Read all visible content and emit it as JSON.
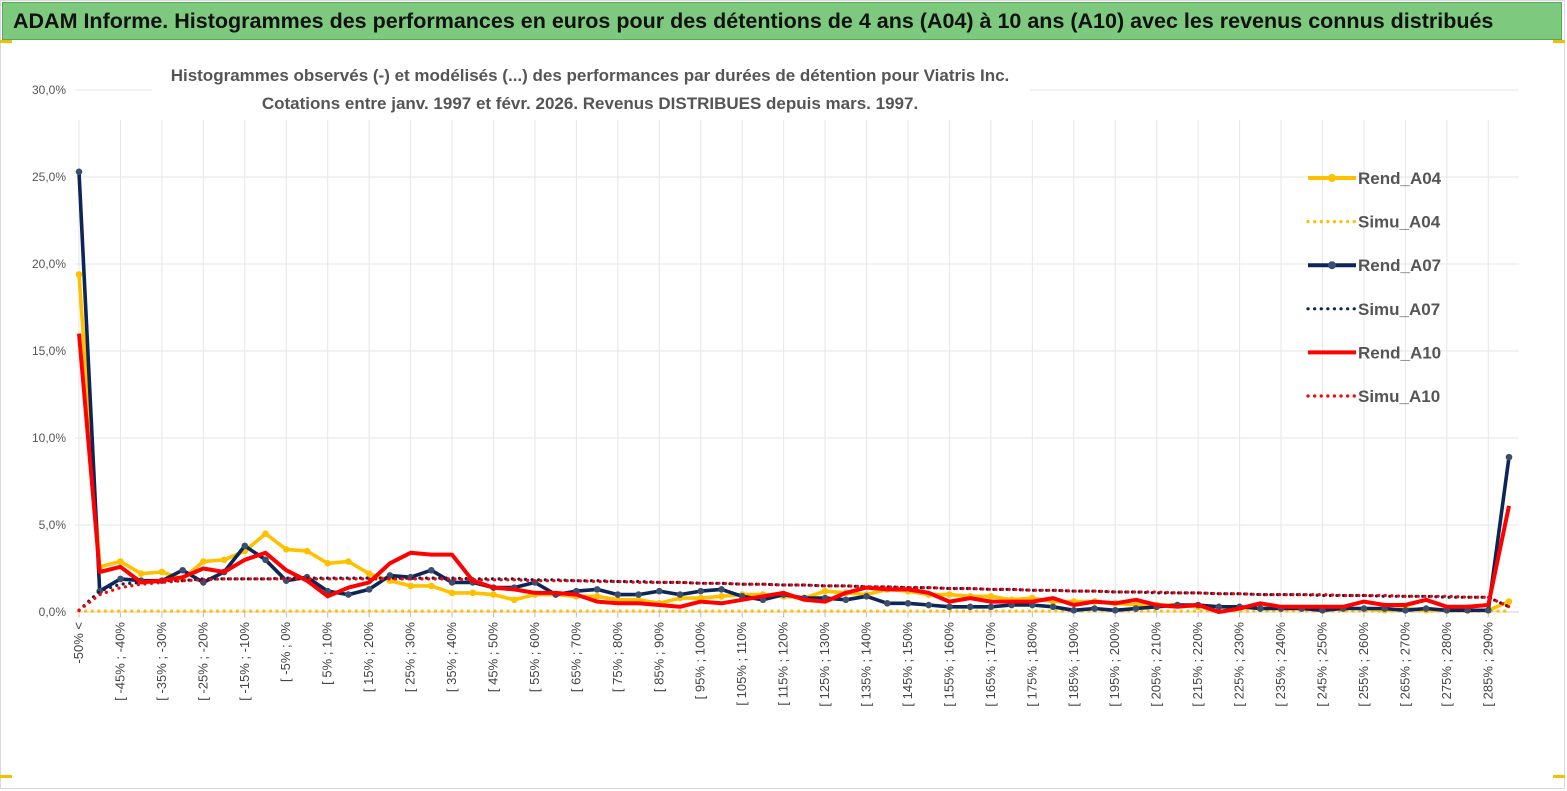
{
  "banner": {
    "title": "ADAM Informe. Histogrammes des performances en euros pour des détentions de 4 ans (A04) à 10 ans (A10) avec les revenus connus distribués"
  },
  "colors": {
    "banner_bg": "#7dc97e",
    "A04": "#ffc000",
    "A07": "#0d2657",
    "A10": "#ff0000",
    "grid": "#e6e6e6"
  },
  "chart_data": {
    "type": "line",
    "title_lines": [
      "Histogrammes observés (-) et modélisés (...) des performances par durées de détention pour Viatris Inc.",
      "Cotations entre janv. 1997 et févr. 2026. Revenus DISTRIBUES depuis mars. 1997."
    ],
    "y_ticks": [
      "0,0%",
      "5,0%",
      "10,0%",
      "15,0%",
      "20,0%",
      "25,0%",
      "30,0%"
    ],
    "ylim": [
      0,
      30
    ],
    "n_points": 70,
    "x_tick_labels": [
      "-50% <",
      "[ -45% ; -40%",
      "[ -35% ; -30%",
      "[ -25% ; -20%",
      "[ -15% ; -10%",
      "[ -5% ; 0%",
      "[ 5% ; 10%",
      "[ 15% ; 20%",
      "[ 25% ; 30%",
      "[ 35% ; 40%",
      "[ 45% ; 50%",
      "[ 55% ; 60%",
      "[ 65% ; 70%",
      "[ 75% ; 80%",
      "[ 85% ; 90%",
      "[ 95% ; 100%",
      "[ 105% ; 110%",
      "[ 115% ; 120%",
      "[ 125% ; 130%",
      "[ 135% ; 140%",
      "[ 145% ; 150%",
      "[ 155% ; 160%",
      "[ 165% ; 170%",
      "[ 175% ; 180%",
      "[ 185% ; 190%",
      "[ 195% ; 200%",
      "[ 205% ; 210%",
      "[ 215% ; 220%",
      "[ 225% ; 230%",
      "[ 235% ; 240%",
      "[ 245% ; 250%",
      "[ 255% ; 260%",
      "[ 265% ; 270%",
      "[ 275% ; 280%",
      "[ 285% ; 290%"
    ],
    "series": [
      {
        "name": "Rend_A04",
        "style": "solid",
        "color": "#ffc000",
        "values": [
          19.4,
          2.6,
          2.9,
          2.2,
          2.3,
          1.9,
          2.9,
          3.0,
          3.5,
          4.5,
          3.6,
          3.5,
          2.8,
          2.9,
          2.2,
          1.8,
          1.5,
          1.5,
          1.1,
          1.1,
          1.0,
          0.7,
          1.0,
          1.0,
          0.9,
          0.9,
          0.7,
          0.7,
          0.5,
          0.8,
          0.8,
          0.9,
          1.0,
          1.0,
          0.9,
          0.8,
          1.2,
          1.1,
          1.0,
          1.3,
          1.2,
          1.0,
          1.0,
          0.9,
          0.9,
          0.7,
          0.8,
          0.6,
          0.6,
          0.6,
          0.5,
          0.4,
          0.4,
          0.4,
          0.3,
          0.3,
          0.3,
          0.2,
          0.2,
          0.2,
          0.2,
          0.2,
          0.2,
          0.1,
          0.2,
          0.1,
          0.1,
          0.1,
          0.1,
          0.6
        ]
      },
      {
        "name": "Simu_A04",
        "style": "dotted",
        "color": "#ffc000",
        "values": [
          0.05,
          0.05,
          0.05,
          0.05,
          0.05,
          0.05,
          0.05,
          0.05,
          0.05,
          0.05,
          0.05,
          0.05,
          0.05,
          0.05,
          0.05,
          0.05,
          0.05,
          0.05,
          0.05,
          0.05,
          0.05,
          0.05,
          0.05,
          0.05,
          0.05,
          0.05,
          0.05,
          0.05,
          0.05,
          0.05,
          0.05,
          0.05,
          0.05,
          0.05,
          0.05,
          0.05,
          0.05,
          0.05,
          0.05,
          0.05,
          0.05,
          0.05,
          0.05,
          0.05,
          0.05,
          0.05,
          0.05,
          0.05,
          0.05,
          0.05,
          0.05,
          0.05,
          0.05,
          0.05,
          0.05,
          0.05,
          0.05,
          0.05,
          0.05,
          0.05,
          0.05,
          0.05,
          0.05,
          0.05,
          0.05,
          0.05,
          0.05,
          0.05,
          0.05,
          0.05
        ]
      },
      {
        "name": "Rend_A07",
        "style": "solid",
        "color": "#0d2657",
        "values": [
          25.3,
          1.2,
          1.9,
          1.8,
          1.8,
          2.4,
          1.7,
          2.3,
          3.8,
          3.0,
          1.8,
          2.0,
          1.2,
          1.0,
          1.3,
          2.1,
          2.0,
          2.4,
          1.7,
          1.7,
          1.4,
          1.4,
          1.7,
          1.0,
          1.2,
          1.3,
          1.0,
          1.0,
          1.2,
          1.0,
          1.2,
          1.3,
          0.9,
          0.7,
          1.0,
          0.8,
          0.8,
          0.7,
          0.9,
          0.5,
          0.5,
          0.4,
          0.3,
          0.3,
          0.3,
          0.4,
          0.4,
          0.3,
          0.1,
          0.2,
          0.1,
          0.2,
          0.3,
          0.4,
          0.4,
          0.3,
          0.3,
          0.2,
          0.2,
          0.2,
          0.1,
          0.2,
          0.2,
          0.2,
          0.1,
          0.2,
          0.1,
          0.1,
          0.1,
          8.9
        ]
      },
      {
        "name": "Simu_A07",
        "style": "dotted",
        "color": "#0d2657",
        "values": [
          0.1,
          1.2,
          1.6,
          1.7,
          1.8,
          1.8,
          1.9,
          1.9,
          1.9,
          1.9,
          1.95,
          1.95,
          1.95,
          1.95,
          1.95,
          1.95,
          1.95,
          1.95,
          1.95,
          1.9,
          1.9,
          1.9,
          1.85,
          1.85,
          1.8,
          1.8,
          1.75,
          1.75,
          1.7,
          1.7,
          1.65,
          1.65,
          1.6,
          1.6,
          1.55,
          1.55,
          1.5,
          1.5,
          1.45,
          1.45,
          1.4,
          1.4,
          1.35,
          1.35,
          1.3,
          1.3,
          1.25,
          1.25,
          1.2,
          1.2,
          1.15,
          1.15,
          1.1,
          1.1,
          1.1,
          1.05,
          1.05,
          1.0,
          1.0,
          1.0,
          0.95,
          0.95,
          0.95,
          0.9,
          0.9,
          0.9,
          0.85,
          0.85,
          0.85,
          0.3
        ]
      },
      {
        "name": "Rend_A10",
        "style": "solid",
        "color": "#ff0000",
        "values": [
          16.0,
          2.3,
          2.6,
          1.7,
          1.8,
          2.0,
          2.5,
          2.3,
          3.0,
          3.4,
          2.4,
          1.8,
          0.9,
          1.4,
          1.7,
          2.8,
          3.4,
          3.3,
          3.3,
          1.8,
          1.4,
          1.3,
          1.1,
          1.1,
          1.0,
          0.6,
          0.5,
          0.5,
          0.4,
          0.3,
          0.6,
          0.5,
          0.7,
          0.9,
          1.1,
          0.7,
          0.6,
          1.1,
          1.4,
          1.3,
          1.3,
          1.1,
          0.6,
          0.8,
          0.6,
          0.6,
          0.6,
          0.8,
          0.4,
          0.6,
          0.5,
          0.7,
          0.4,
          0.3,
          0.4,
          0.0,
          0.2,
          0.5,
          0.3,
          0.3,
          0.3,
          0.3,
          0.6,
          0.4,
          0.4,
          0.7,
          0.3,
          0.3,
          0.4,
          6.1
        ]
      },
      {
        "name": "Simu_A10",
        "style": "dotted",
        "color": "#ff0000",
        "values": [
          0.1,
          1.0,
          1.4,
          1.6,
          1.7,
          1.8,
          1.85,
          1.9,
          1.9,
          1.9,
          1.9,
          1.9,
          1.9,
          1.9,
          1.9,
          1.9,
          1.9,
          1.9,
          1.9,
          1.85,
          1.85,
          1.85,
          1.8,
          1.8,
          1.8,
          1.75,
          1.75,
          1.7,
          1.7,
          1.7,
          1.65,
          1.65,
          1.6,
          1.6,
          1.55,
          1.55,
          1.5,
          1.5,
          1.45,
          1.45,
          1.4,
          1.4,
          1.35,
          1.35,
          1.3,
          1.3,
          1.25,
          1.25,
          1.2,
          1.2,
          1.15,
          1.15,
          1.15,
          1.1,
          1.1,
          1.05,
          1.05,
          1.0,
          1.0,
          1.0,
          1.0,
          0.95,
          0.95,
          0.95,
          0.9,
          0.9,
          0.9,
          0.85,
          0.85,
          0.3
        ]
      }
    ],
    "legend": [
      "Rend_A04",
      "Simu_A04",
      "Rend_A07",
      "Simu_A07",
      "Rend_A10",
      "Simu_A10"
    ],
    "legend_position": "right"
  }
}
